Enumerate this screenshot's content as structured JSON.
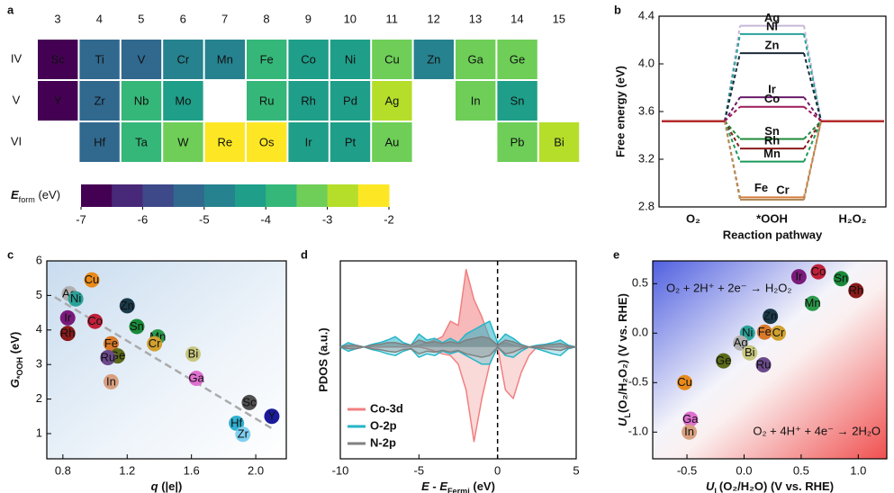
{
  "chart_data": [
    {
      "label": "a",
      "type": "heatmap",
      "columns": [
        3,
        4,
        5,
        6,
        7,
        8,
        9,
        10,
        11,
        12,
        13,
        14,
        15
      ],
      "rows": [
        {
          "name": "IV",
          "symbols": [
            "Sc",
            "Ti",
            "V",
            "Cr",
            "Mn",
            "Fe",
            "Co",
            "Ni",
            "Cu",
            "Zn",
            "Ga",
            "Ge",
            null
          ],
          "values": [
            -6.8,
            -5.3,
            -5.2,
            -5.0,
            -4.6,
            -3.6,
            -4.1,
            -4.2,
            -3.5,
            -4.6,
            -3.3,
            -3.5,
            null
          ]
        },
        {
          "name": "V",
          "symbols": [
            "Y",
            "Zr",
            "Nb",
            "Mo",
            null,
            "Ru",
            "Rh",
            "Pd",
            "Ag",
            null,
            "In",
            "Sn",
            null
          ],
          "values": [
            -6.9,
            -5.2,
            -3.9,
            -4.1,
            null,
            -3.7,
            -4.3,
            -4.3,
            -2.8,
            null,
            -3.5,
            -4.2,
            null
          ]
        },
        {
          "name": "VI",
          "symbols": [
            null,
            "Hf",
            "Ta",
            "W",
            "Re",
            "Os",
            "Ir",
            "Pt",
            "Au",
            null,
            null,
            "Pb",
            "Bi"
          ],
          "values": [
            null,
            -5.3,
            -4.0,
            -3.2,
            -2.1,
            -2.0,
            -4.3,
            -4.4,
            -3.4,
            null,
            null,
            -3.4,
            -2.7
          ]
        }
      ],
      "colorbar": {
        "title": [
          {
            "text": "E",
            "style": "bold-italic"
          },
          {
            "text": "form",
            "style": "sub"
          },
          {
            "text": " (eV)"
          }
        ],
        "lim": [
          -7,
          -2
        ],
        "ticks": [
          -7,
          -6,
          -5,
          -4,
          -3,
          -2
        ],
        "colors": [
          "#440154",
          "#482878",
          "#3e4989",
          "#31688e",
          "#26828e",
          "#1f9e89",
          "#35b779",
          "#6ece58",
          "#b5de2b",
          "#fde725"
        ]
      }
    },
    {
      "label": "b",
      "type": "level-diagram",
      "ylabel": "Free energy (eV)",
      "xlabel": "Reaction pathway",
      "categories": [
        "O₂",
        "*OOH",
        "H₂O₂"
      ],
      "ylim": [
        2.8,
        4.4
      ],
      "yticks": [
        2.8,
        3.2,
        3.6,
        {
          "value": 4,
          "label": "4.0"
        },
        4.4
      ],
      "reference_color": "#b22a2a",
      "series": [
        {
          "name": "Ag",
          "color": "#c8b8d8",
          "values": [
            3.52,
            4.32,
            3.52
          ]
        },
        {
          "name": "Ni",
          "color": "#2aa198",
          "values": [
            3.52,
            4.25,
            3.52
          ]
        },
        {
          "name": "Zn",
          "color": "#1a2a3a",
          "values": [
            3.52,
            4.09,
            3.52
          ]
        },
        {
          "name": "Ir",
          "color": "#6a1b6a",
          "values": [
            3.52,
            3.72,
            3.52
          ]
        },
        {
          "name": "Co",
          "color": "#9b1b5a",
          "values": [
            3.52,
            3.64,
            3.52
          ]
        },
        {
          "name": "Sn",
          "color": "#1e8a3a",
          "values": [
            3.52,
            3.37,
            3.52
          ]
        },
        {
          "name": "Rh",
          "color": "#8b1a1a",
          "values": [
            3.52,
            3.29,
            3.52
          ]
        },
        {
          "name": "Mn",
          "color": "#1a9a5a",
          "values": [
            3.52,
            3.18,
            3.52
          ]
        },
        {
          "name": "Fe",
          "color": "#d47a3a",
          "values": [
            3.52,
            2.88,
            3.52
          ]
        },
        {
          "name": "Cr",
          "color": "#b08a5a",
          "values": [
            3.52,
            2.86,
            3.52
          ]
        }
      ]
    },
    {
      "label": "c",
      "type": "scatter",
      "xlabel": [
        {
          "text": "q",
          "style": "italic"
        },
        {
          "text": " (|e|)"
        }
      ],
      "ylabel": [
        {
          "text": "G",
          "style": "italic"
        },
        {
          "text": "*OOH",
          "style": "sub"
        },
        {
          "text": " (eV)"
        }
      ],
      "xlim": [
        0.7,
        2.19
      ],
      "xticks": [
        0.8,
        1.2,
        1.6,
        {
          "value": 2,
          "label": "2.0"
        }
      ],
      "ylim": [
        0.27,
        6
      ],
      "yticks": [
        1,
        2,
        3,
        4,
        5,
        6
      ],
      "labels": [
        "Cu",
        "Ag",
        "Ni",
        "Zn",
        "Ir",
        "Co",
        "Sn",
        "Rh",
        "Mn",
        "Cr",
        "Fe",
        "Ge",
        "Ru",
        "Bi",
        "Ga",
        "In",
        "Sc",
        "Y",
        "Hf",
        "Zr"
      ],
      "x": [
        0.98,
        0.84,
        0.88,
        1.2,
        0.83,
        1.0,
        1.26,
        0.83,
        1.39,
        1.37,
        1.1,
        1.14,
        1.08,
        1.61,
        1.63,
        1.1,
        1.96,
        2.1,
        1.88,
        1.92
      ],
      "values": [
        5.45,
        5.05,
        4.9,
        4.7,
        4.35,
        4.25,
        4.1,
        3.9,
        3.8,
        3.6,
        3.6,
        3.25,
        3.2,
        3.3,
        2.6,
        2.5,
        1.9,
        1.5,
        1.3,
        0.98
      ],
      "colors": [
        "#e88a1a",
        "#b0b0b0",
        "#2aa198",
        "#1a3a4a",
        "#7a1a7a",
        "#c0203a",
        "#1a8a3a",
        "#8a1a1a",
        "#2a9a4a",
        "#d0a030",
        "#d87a2a",
        "#5a6a1a",
        "#6a4a8a",
        "#c8c880",
        "#e070d0",
        "#d8a080",
        "#505050",
        "#1a1a9a",
        "#30b0d0",
        "#80d0f0"
      ],
      "fit_line": {
        "x": [
          0.75,
          2.1
        ],
        "y": [
          4.95,
          1.15
        ]
      }
    },
    {
      "label": "d",
      "type": "line",
      "xlabel": [
        {
          "text": "E",
          "style": "italic"
        },
        {
          "text": " - "
        },
        {
          "text": "E",
          "style": "italic"
        },
        {
          "text": "Fermi",
          "style": "sub"
        },
        {
          "text": " (eV)"
        }
      ],
      "ylabel": "PDOS (a.u.)",
      "xlim": [
        -10,
        5
      ],
      "xticks": [
        -10,
        -5,
        0,
        5
      ],
      "ylim": [
        -1.3,
        1.0
      ],
      "fermi_line": 0,
      "x": [
        -10,
        -9.5,
        -9,
        -8.5,
        -8,
        -7.5,
        -7,
        -6.5,
        -6,
        -5.5,
        -5,
        -4.5,
        -4,
        -3.5,
        -3,
        -2.5,
        -2,
        -1.5,
        -1,
        -0.5,
        0,
        0.5,
        1,
        1.5,
        2,
        2.5,
        3,
        3.5,
        4,
        4.5,
        5
      ],
      "series": [
        {
          "name": "Co-3d",
          "color": "#f08080",
          "values": [
            0,
            0,
            0,
            0,
            0,
            0,
            0,
            0,
            0,
            0,
            0.02,
            0.05,
            0.08,
            0.12,
            0.3,
            0.25,
            0.9,
            0.55,
            0.35,
            0.1,
            0.02,
            0.05,
            0.02,
            0,
            0,
            0,
            0,
            0,
            0,
            0,
            0
          ],
          "values_down": [
            0,
            0,
            0,
            0,
            0,
            0,
            0,
            0,
            0,
            0,
            0,
            -0.02,
            -0.05,
            -0.08,
            -0.1,
            -0.2,
            -0.5,
            -1.1,
            -0.6,
            -0.2,
            0,
            -0.5,
            -0.6,
            -0.3,
            -0.1,
            0,
            0,
            0,
            0,
            0,
            0
          ]
        },
        {
          "name": "O-2p",
          "color": "#26b5c8",
          "values": [
            0,
            0.05,
            0.02,
            0,
            0.03,
            0.05,
            0.08,
            0.12,
            0.05,
            0.02,
            0.15,
            0.08,
            0.1,
            0.05,
            0.1,
            0.05,
            0.15,
            0.2,
            0.25,
            0.3,
            0.05,
            0.15,
            0.1,
            0.03,
            0,
            0.02,
            0.03,
            0.05,
            0.08,
            0.02,
            0
          ],
          "values_down": [
            0,
            -0.05,
            -0.02,
            0,
            -0.03,
            -0.05,
            -0.08,
            -0.1,
            -0.05,
            -0.02,
            -0.12,
            -0.08,
            -0.1,
            -0.05,
            -0.08,
            -0.05,
            -0.1,
            -0.15,
            -0.2,
            -0.2,
            0,
            -0.1,
            -0.12,
            -0.05,
            0,
            -0.02,
            -0.05,
            -0.08,
            -0.1,
            -0.02,
            0
          ]
        },
        {
          "name": "N-2p",
          "color": "#808080",
          "values": [
            0,
            0.02,
            0.02,
            0,
            0.02,
            0.03,
            0.05,
            0.05,
            0.03,
            0.02,
            0.08,
            0.05,
            0.06,
            0.04,
            0.06,
            0.04,
            0.08,
            0.1,
            0.12,
            0.1,
            0.02,
            0.08,
            0.06,
            0.02,
            0,
            0.01,
            0.02,
            0.03,
            0.04,
            0.01,
            0
          ],
          "values_down": [
            0,
            -0.02,
            -0.02,
            0,
            -0.02,
            -0.03,
            -0.05,
            -0.06,
            -0.03,
            -0.02,
            -0.08,
            -0.05,
            -0.06,
            -0.04,
            -0.06,
            -0.04,
            -0.08,
            -0.1,
            -0.12,
            -0.1,
            0,
            -0.08,
            -0.06,
            -0.02,
            0,
            -0.01,
            -0.02,
            -0.03,
            -0.04,
            -0.01,
            0
          ]
        }
      ]
    },
    {
      "label": "e",
      "type": "scatter",
      "xlabel": [
        {
          "text": "U",
          "style": "italic"
        },
        {
          "text": "L",
          "style": "sub"
        },
        {
          "text": "(O₂/H₂O) (V vs. RHE)"
        }
      ],
      "ylabel": [
        {
          "text": "U",
          "style": "italic"
        },
        {
          "text": "L",
          "style": "sub"
        },
        {
          "text": "(O₂/H₂O₂) (V vs. RHE)"
        }
      ],
      "xlim": [
        -0.8,
        1.25
      ],
      "xticks": [
        -0.5,
        {
          "value": 0,
          "label": "0.0"
        },
        0.5,
        {
          "value": 1,
          "label": "1.0"
        }
      ],
      "ylim": [
        -1.27,
        0.73
      ],
      "yticks": [
        {
          "value": -1,
          "label": "-1.0"
        },
        -0.5,
        {
          "value": 0,
          "label": "0.0"
        },
        0.5
      ],
      "annotations": [
        "O₂ + 2H⁺ + 2e⁻ → H₂O₂",
        "O₂ + 4H⁺ + 4e⁻ → 2H₂O"
      ],
      "labels": [
        "Co",
        "Sn",
        "Ir",
        "Rh",
        "Mn",
        "Zn",
        "Ni",
        "Fe",
        "Cr",
        "Ag",
        "Bi",
        "Ge",
        "Ru",
        "Cu",
        "Ga",
        "In"
      ],
      "x": [
        0.65,
        0.85,
        0.48,
        0.98,
        0.6,
        0.23,
        0.03,
        0.18,
        0.3,
        -0.03,
        0.05,
        -0.18,
        0.17,
        -0.52,
        -0.47,
        -0.48
      ],
      "values": [
        0.62,
        0.55,
        0.57,
        0.43,
        0.3,
        0.17,
        0.0,
        0.01,
        0.0,
        -0.1,
        -0.2,
        -0.28,
        -0.32,
        -0.5,
        -0.87,
        -1.0
      ],
      "colors": [
        "#c0203a",
        "#1a8a3a",
        "#7a1a7a",
        "#8a1a1a",
        "#2a9a4a",
        "#1a3a4a",
        "#2aa198",
        "#d87a2a",
        "#d0a030",
        "#b0b0b0",
        "#c8c880",
        "#5a6a1a",
        "#6a4a8a",
        "#e88a1a",
        "#e070d0",
        "#d8a080"
      ]
    }
  ]
}
